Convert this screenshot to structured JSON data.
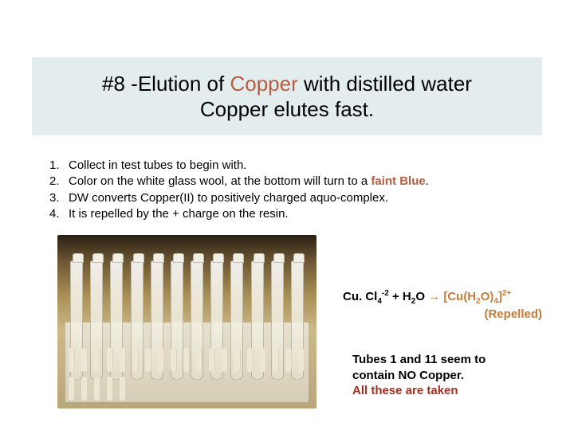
{
  "title": {
    "line1_pre": "#8 -Elution of ",
    "line1_accent": "Copper",
    "line1_post": " with distilled water",
    "line2": "Copper elutes fast."
  },
  "list": {
    "items": [
      {
        "n": "1.",
        "text": "Collect in test tubes to begin with.",
        "suffix_accent": ""
      },
      {
        "n": "2.",
        "text": "Color on the white glass wool, at the bottom will turn to a ",
        "suffix_accent": "faint Blue",
        "suffix_post": "."
      },
      {
        "n": "3.",
        "text": "DW converts Copper(II) to positively charged aquo-complex.",
        "suffix_accent": ""
      },
      {
        "n": "4.",
        "text": "It is repelled by the + charge on the resin.",
        "suffix_accent": ""
      }
    ]
  },
  "equation": {
    "reactant1_base": "Cu. Cl",
    "reactant1_sub": "4",
    "reactant1_sup": "-2",
    "plus": " +  H",
    "h2o_sub": "2",
    "h2o_post": "O  ",
    "arrow": "→",
    "product_pre": " [Cu(H",
    "product_sub1": "2",
    "product_mid": "O)",
    "product_sub2": "4",
    "product_post": "]",
    "product_sup": "2+",
    "repelled": "(Repelled)"
  },
  "note": {
    "line1": "Tubes 1 and 11 seem to",
    "line2": "contain NO Copper.",
    "line3": "All these are taken"
  },
  "colors": {
    "title_bg": "#e4edee",
    "accent_brown": "#b75c41",
    "accent_orange": "#c77b39",
    "accent_red": "#a03020",
    "body_text": "#000000"
  },
  "photo": {
    "tube_count": 12,
    "peg_count": 24
  }
}
